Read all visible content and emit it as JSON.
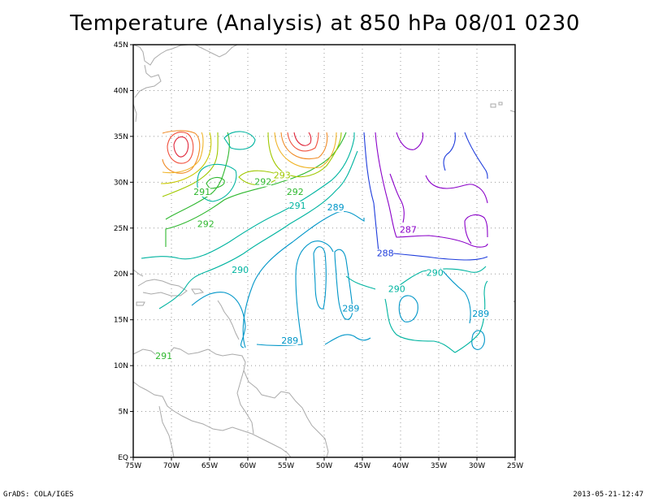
{
  "title": "Temperature (Analysis) at 850 hPa 08/01 0230",
  "footer": {
    "left": "GrADS: COLA/IGES",
    "right": "2013-05-21-12:47"
  },
  "axes": {
    "lon_range": [
      -75,
      -25
    ],
    "lat_range": [
      0,
      45
    ],
    "x_ticks": [
      "75W",
      "70W",
      "65W",
      "60W",
      "55W",
      "50W",
      "45W",
      "40W",
      "35W",
      "30W",
      "25W"
    ],
    "y_ticks": [
      "EQ",
      "5N",
      "10N",
      "15N",
      "20N",
      "25N",
      "30N",
      "35N",
      "40N",
      "45N"
    ],
    "grid": true
  },
  "contour_labels": [
    {
      "text": "291",
      "lon": -66.0,
      "lat": 28.7,
      "color": "#2fb82f"
    },
    {
      "text": "292",
      "lon": -65.5,
      "lat": 25.2,
      "color": "#2fb82f"
    },
    {
      "text": "292",
      "lon": -58.0,
      "lat": 29.8,
      "color": "#2fb82f"
    },
    {
      "text": "293",
      "lon": -55.5,
      "lat": 30.5,
      "color": "#a0c800"
    },
    {
      "text": "292",
      "lon": -53.8,
      "lat": 28.7,
      "color": "#2fb82f"
    },
    {
      "text": "291",
      "lon": -53.5,
      "lat": 27.2,
      "color": "#00b4a0"
    },
    {
      "text": "289",
      "lon": -48.5,
      "lat": 27.0,
      "color": "#0096c8"
    },
    {
      "text": "290",
      "lon": -61.0,
      "lat": 20.2,
      "color": "#00b4a0"
    },
    {
      "text": "287",
      "lon": -39.0,
      "lat": 24.6,
      "color": "#8a00c8"
    },
    {
      "text": "288",
      "lon": -42.0,
      "lat": 22.0,
      "color": "#1e3cdc"
    },
    {
      "text": "290",
      "lon": -35.5,
      "lat": 19.9,
      "color": "#00b4a0"
    },
    {
      "text": "290",
      "lon": -40.5,
      "lat": 18.1,
      "color": "#00b4a0"
    },
    {
      "text": "289",
      "lon": -46.5,
      "lat": 16.0,
      "color": "#0096c8"
    },
    {
      "text": "289",
      "lon": -29.5,
      "lat": 15.4,
      "color": "#0096c8"
    },
    {
      "text": "289",
      "lon": -54.5,
      "lat": 12.5,
      "color": "#0096c8"
    },
    {
      "text": "291",
      "lon": -71.0,
      "lat": 10.8,
      "color": "#2fb82f"
    }
  ]
}
